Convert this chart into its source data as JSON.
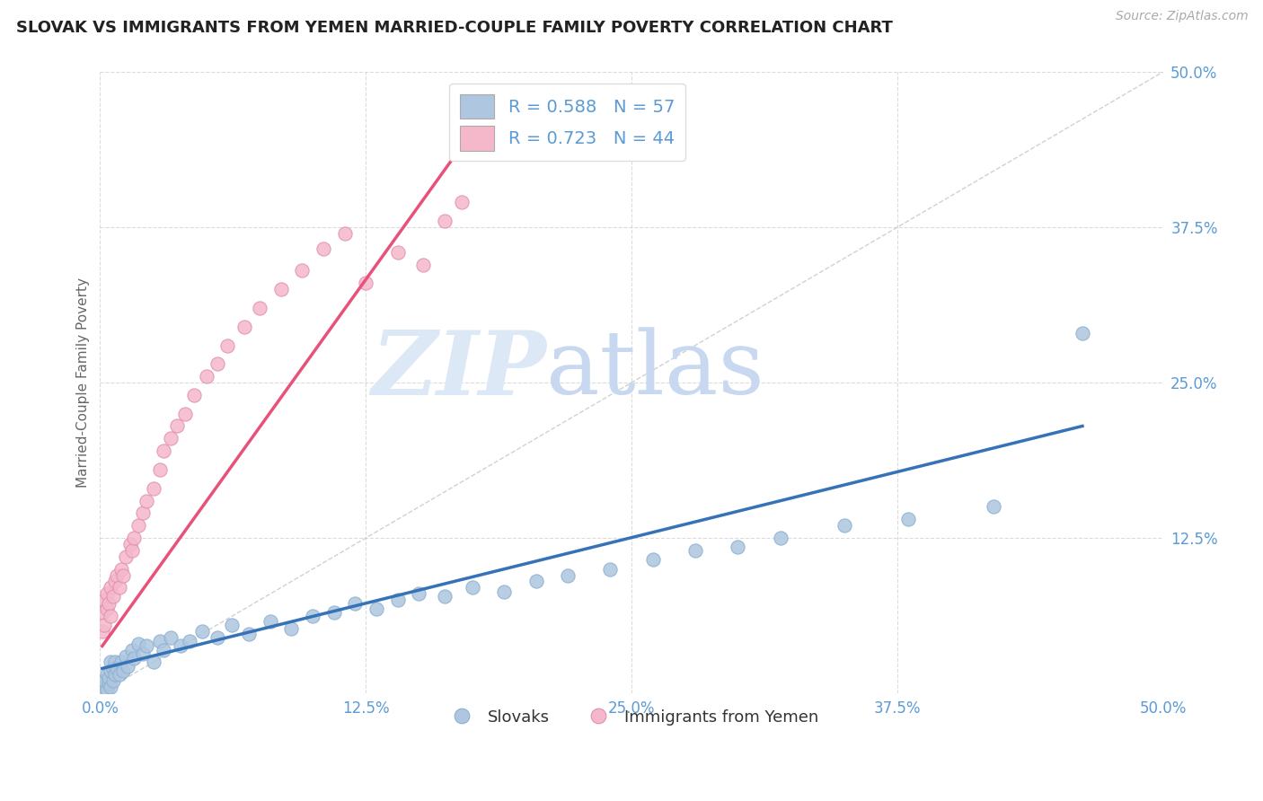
{
  "title": "SLOVAK VS IMMIGRANTS FROM YEMEN MARRIED-COUPLE FAMILY POVERTY CORRELATION CHART",
  "source_text": "Source: ZipAtlas.com",
  "ylabel": "Married-Couple Family Poverty",
  "xlim": [
    0.0,
    0.5
  ],
  "ylim": [
    0.0,
    0.5
  ],
  "xticks": [
    0.0,
    0.125,
    0.25,
    0.375,
    0.5
  ],
  "yticks": [
    0.0,
    0.125,
    0.25,
    0.375,
    0.5
  ],
  "xticklabels": [
    "0.0%",
    "12.5%",
    "25.0%",
    "37.5%",
    "50.0%"
  ],
  "yticklabels": [
    "",
    "12.5%",
    "25.0%",
    "37.5%",
    "50.0%"
  ],
  "blue_color": "#aec6df",
  "pink_color": "#f5b8cb",
  "blue_line_color": "#3672b8",
  "pink_line_color": "#e8527a",
  "diag_color": "#cccccc",
  "grid_color": "#cccccc",
  "tick_color": "#5b9bd5",
  "watermark_zip": "ZIP",
  "watermark_atlas": "atlas",
  "background_color": "#ffffff",
  "legend1_text": "R = 0.588   N = 57",
  "legend2_text": "R = 0.723   N = 44",
  "label_slovak": "Slovaks",
  "label_yemen": "Immigrants from Yemen",
  "blue_line_x0": 0.001,
  "blue_line_x1": 0.462,
  "blue_line_y0": 0.02,
  "blue_line_y1": 0.215,
  "pink_line_x0": 0.001,
  "pink_line_x1": 0.17,
  "pink_line_y0": 0.038,
  "pink_line_y1": 0.44,
  "slovak_x": [
    0.001,
    0.002,
    0.002,
    0.003,
    0.003,
    0.004,
    0.004,
    0.005,
    0.005,
    0.005,
    0.006,
    0.006,
    0.007,
    0.007,
    0.008,
    0.009,
    0.01,
    0.011,
    0.012,
    0.013,
    0.015,
    0.016,
    0.018,
    0.02,
    0.022,
    0.025,
    0.028,
    0.03,
    0.033,
    0.038,
    0.042,
    0.048,
    0.055,
    0.062,
    0.07,
    0.08,
    0.09,
    0.1,
    0.11,
    0.12,
    0.13,
    0.14,
    0.15,
    0.162,
    0.175,
    0.19,
    0.205,
    0.22,
    0.24,
    0.26,
    0.28,
    0.3,
    0.32,
    0.35,
    0.38,
    0.42,
    0.462
  ],
  "slovak_y": [
    0.005,
    0.002,
    0.01,
    0.003,
    0.015,
    0.008,
    0.012,
    0.005,
    0.018,
    0.025,
    0.01,
    0.02,
    0.015,
    0.025,
    0.02,
    0.015,
    0.025,
    0.018,
    0.03,
    0.022,
    0.035,
    0.028,
    0.04,
    0.032,
    0.038,
    0.025,
    0.042,
    0.035,
    0.045,
    0.038,
    0.042,
    0.05,
    0.045,
    0.055,
    0.048,
    0.058,
    0.052,
    0.062,
    0.065,
    0.072,
    0.068,
    0.075,
    0.08,
    0.078,
    0.085,
    0.082,
    0.09,
    0.095,
    0.1,
    0.108,
    0.115,
    0.118,
    0.125,
    0.135,
    0.14,
    0.15,
    0.29
  ],
  "yemen_x": [
    0.001,
    0.001,
    0.002,
    0.002,
    0.003,
    0.003,
    0.004,
    0.005,
    0.005,
    0.006,
    0.007,
    0.008,
    0.009,
    0.01,
    0.011,
    0.012,
    0.014,
    0.015,
    0.016,
    0.018,
    0.02,
    0.022,
    0.025,
    0.028,
    0.03,
    0.033,
    0.036,
    0.04,
    0.044,
    0.05,
    0.055,
    0.06,
    0.068,
    0.075,
    0.085,
    0.095,
    0.105,
    0.115,
    0.125,
    0.14,
    0.152,
    0.162,
    0.17,
    0.18
  ],
  "yemen_y": [
    0.05,
    0.065,
    0.055,
    0.075,
    0.068,
    0.08,
    0.072,
    0.062,
    0.085,
    0.078,
    0.09,
    0.095,
    0.085,
    0.1,
    0.095,
    0.11,
    0.12,
    0.115,
    0.125,
    0.135,
    0.145,
    0.155,
    0.165,
    0.18,
    0.195,
    0.205,
    0.215,
    0.225,
    0.24,
    0.255,
    0.265,
    0.28,
    0.295,
    0.31,
    0.325,
    0.34,
    0.358,
    0.37,
    0.33,
    0.355,
    0.345,
    0.38,
    0.395,
    0.44
  ]
}
